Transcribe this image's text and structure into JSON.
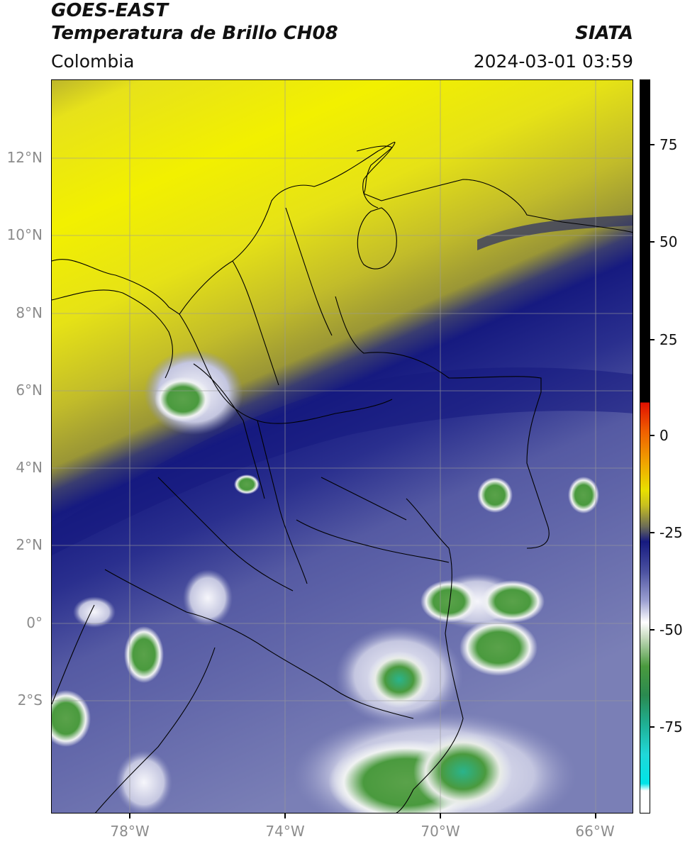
{
  "header": {
    "line1": "GOES-EAST",
    "line2": "Temperatura de Brillo CH08",
    "line3": "Colombia",
    "org": "SIATA",
    "datetime": "2024-03-01 03:59"
  },
  "map": {
    "lat_labels": [
      "12°N",
      "10°N",
      "8°N",
      "6°N",
      "4°N",
      "2°N",
      "0°",
      "2°S"
    ],
    "lon_labels": [
      "78°W",
      "74°W",
      "70°W",
      "66°W"
    ],
    "colors": {
      "yellow": "#f2f000",
      "olive": "#bdb62a",
      "navy": "#161a80",
      "blue_gray": "#7075b0",
      "white": "#f4f4fa",
      "green": "#4a9a3e",
      "teal": "#2ab48c",
      "border": "#000000",
      "grid": "#9a9a9a"
    }
  },
  "colorbar": {
    "labels": [
      "75",
      "50",
      "25",
      "0",
      "-25",
      "-50",
      "-75"
    ]
  }
}
